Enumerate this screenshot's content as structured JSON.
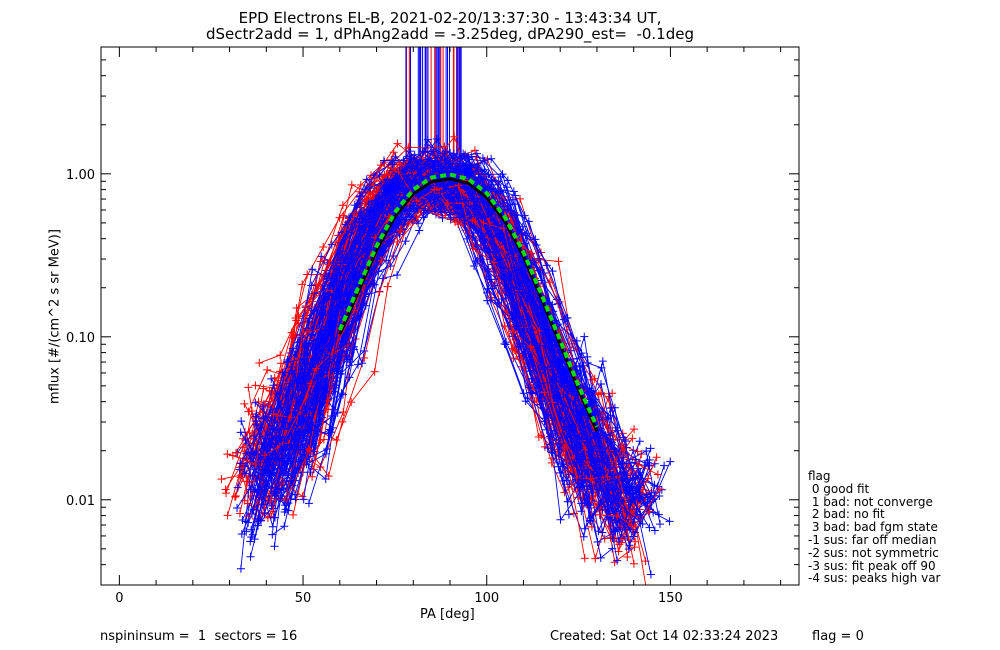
{
  "header": {
    "title_line1": "EPD Electrons EL-B, 2021-02-20/13:37:30 - 13:43:34 UT,",
    "title_line2": "dSectr2add = 1, dPhAng2add = -3.25deg, dPA290_est=  -0.1deg"
  },
  "footer": {
    "left": "nspininsum =  1  sectors = 16",
    "created": "Created: Sat Oct 14 02:33:24 2023",
    "flag": "flag = 0"
  },
  "legend": {
    "title": "flag",
    "items": [
      " 0 good fit",
      " 1 bad: not converge",
      " 2 bad: no fit",
      " 3 bad: bad fgm state",
      "-1 sus: far off median",
      "-2 sus: not symmetric",
      "-3 sus: fit peak off 90",
      "-4 sus: peaks high var"
    ]
  },
  "colors": {
    "axis": "#000000",
    "series_a": "#ff0000",
    "series_b": "#0000ff",
    "fit": "#00dd00",
    "median": "#000000"
  },
  "chart_data": {
    "type": "line",
    "xlabel": "PA [deg]",
    "ylabel": "mflux [#/(cm^2 s sr MeV)]",
    "xlim": [
      -5,
      185
    ],
    "ylim": [
      0.003,
      6.0
    ],
    "y_scale": "log",
    "x_ticks": [
      0,
      50,
      100,
      150
    ],
    "x_tick_labels": [
      "0",
      "50",
      "100",
      "150"
    ],
    "y_ticks": [
      0.01,
      0.1,
      1.0
    ],
    "y_tick_labels": [
      "0.01",
      "0.10",
      "1.00"
    ],
    "grid": false,
    "series": [
      {
        "x": [
          33,
          38,
          43,
          48,
          53,
          58,
          63,
          68,
          73,
          78,
          83,
          88,
          93,
          98,
          103,
          108,
          113,
          118,
          123,
          128,
          133,
          138,
          143
        ],
        "values": [
          0.012,
          0.016,
          0.023,
          0.035,
          0.06,
          0.12,
          0.25,
          0.45,
          0.68,
          0.86,
          0.93,
          0.92,
          0.85,
          0.68,
          0.44,
          0.25,
          0.12,
          0.06,
          0.033,
          0.02,
          0.014,
          0.011,
          0.01
        ]
      },
      {
        "x": [
          34,
          39,
          44,
          49,
          54,
          59,
          64,
          69,
          74,
          79,
          84,
          89,
          94,
          99,
          104,
          109,
          114,
          119,
          124,
          129,
          134,
          139,
          144
        ],
        "values": [
          0.011,
          0.014,
          0.02,
          0.03,
          0.055,
          0.11,
          0.23,
          0.43,
          0.66,
          0.84,
          0.92,
          0.91,
          0.83,
          0.66,
          0.42,
          0.23,
          0.11,
          0.055,
          0.03,
          0.018,
          0.012,
          0.01,
          0.009
        ]
      },
      {
        "x": [
          60,
          65,
          70,
          75,
          80,
          85,
          90,
          95,
          100,
          105,
          110,
          115,
          120,
          125,
          130
        ],
        "values": [
          0.11,
          0.2,
          0.36,
          0.58,
          0.8,
          0.95,
          0.99,
          0.93,
          0.76,
          0.54,
          0.33,
          0.18,
          0.095,
          0.05,
          0.028
        ]
      }
    ]
  }
}
